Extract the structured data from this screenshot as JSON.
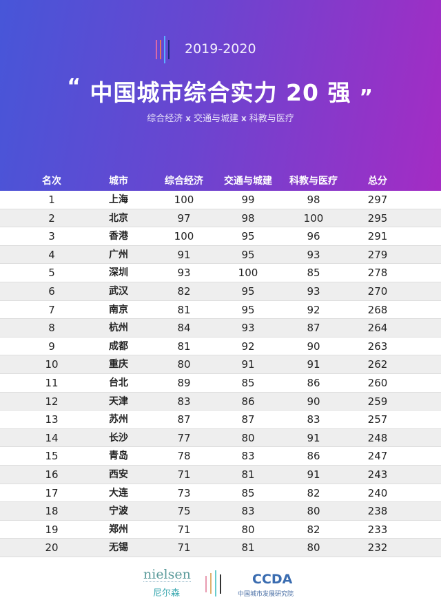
{
  "header": {
    "year": "2019-2020",
    "open_quote": "“",
    "title": "中国城市综合实力 20 强",
    "close_quote": "„",
    "subtitle_parts": [
      "综合经济",
      "交通与城建",
      "科教与医疗"
    ],
    "separator": "x"
  },
  "colors": {
    "gradient_start": "#4756d8",
    "gradient_end": "#a42cc4",
    "stripe": "#eeeeee"
  },
  "chart_data": {
    "type": "table",
    "columns": [
      "名次",
      "城市",
      "综合经济",
      "交通与城建",
      "科教与医疗",
      "总分"
    ],
    "rows": [
      [
        1,
        "上海",
        100,
        99,
        98,
        297
      ],
      [
        2,
        "北京",
        97,
        98,
        100,
        295
      ],
      [
        3,
        "香港",
        100,
        95,
        96,
        291
      ],
      [
        4,
        "广州",
        91,
        95,
        93,
        279
      ],
      [
        5,
        "深圳",
        93,
        100,
        85,
        278
      ],
      [
        6,
        "武汉",
        82,
        95,
        93,
        270
      ],
      [
        7,
        "南京",
        81,
        95,
        92,
        268
      ],
      [
        8,
        "杭州",
        84,
        93,
        87,
        264
      ],
      [
        9,
        "成都",
        81,
        92,
        90,
        263
      ],
      [
        10,
        "重庆",
        80,
        91,
        91,
        262
      ],
      [
        11,
        "台北",
        89,
        85,
        86,
        260
      ],
      [
        12,
        "天津",
        83,
        86,
        90,
        259
      ],
      [
        13,
        "苏州",
        87,
        87,
        83,
        257
      ],
      [
        14,
        "长沙",
        77,
        80,
        91,
        248
      ],
      [
        15,
        "青岛",
        78,
        83,
        86,
        247
      ],
      [
        16,
        "西安",
        71,
        81,
        91,
        243
      ],
      [
        17,
        "大连",
        73,
        85,
        82,
        240
      ],
      [
        18,
        "宁波",
        75,
        83,
        80,
        238
      ],
      [
        19,
        "郑州",
        71,
        80,
        82,
        233
      ],
      [
        20,
        "无锡",
        71,
        81,
        80,
        232
      ]
    ]
  },
  "footer": {
    "nielsen": "nielsen",
    "nielsen_cn": "尼尔森",
    "ccda": "CCDA",
    "ccda_cn": "中国城市发展研究院"
  }
}
